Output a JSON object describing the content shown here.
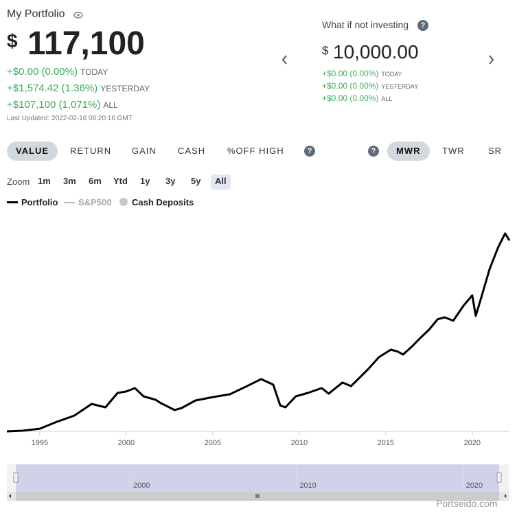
{
  "header": {
    "title": "My Portfolio",
    "currency": "$",
    "value": "117,100",
    "changes": [
      {
        "amount": "+$0.00 (0.00%)",
        "period": "TODAY"
      },
      {
        "amount": "+$1,574.42 (1.36%)",
        "period": "YESTERDAY"
      },
      {
        "amount": "+$107,100 (1,071%)",
        "period": "ALL"
      }
    ],
    "last_updated": "Last Updated: 2022-02-16 08:20:16 GMT"
  },
  "compare": {
    "title": "What if not investing",
    "currency": "$",
    "value": "10,000.00",
    "changes": [
      {
        "amount": "+$0.00 (0.00%)",
        "period": "TODAY"
      },
      {
        "amount": "+$0.00 (0.00%)",
        "period": "YESTERDAY"
      },
      {
        "amount": "+$0.00 (0.00%)",
        "period": "ALL"
      }
    ]
  },
  "tabs": {
    "items": [
      "VALUE",
      "RETURN",
      "GAIN",
      "CASH",
      "%OFF HIGH"
    ],
    "active": 0
  },
  "methods": {
    "items": [
      "MWR",
      "TWR",
      "SR"
    ],
    "active": 0
  },
  "zoom": {
    "label": "Zoom",
    "options": [
      "1m",
      "3m",
      "6m",
      "Ytd",
      "1y",
      "3y",
      "5y",
      "All"
    ],
    "active": 7
  },
  "legend": [
    {
      "name": "Portfolio",
      "color": "#000000"
    },
    {
      "name": "S&P500",
      "color": "#bbbbbb"
    },
    {
      "name": "Cash Deposits",
      "color": "#c8c8c8"
    }
  ],
  "chart_data": {
    "type": "line",
    "x": [
      1993.1,
      1994,
      1995,
      1996,
      1997,
      1998,
      1998.8,
      1999.5,
      2000,
      2000.5,
      2001,
      2001.7,
      2002,
      2002.8,
      2003.2,
      2004,
      2005,
      2006,
      2007,
      2007.8,
      2008.5,
      2008.9,
      2009.2,
      2009.8,
      2010.5,
      2011.3,
      2011.7,
      2012.5,
      2013,
      2014,
      2014.6,
      2015.3,
      2015.7,
      2016,
      2016.5,
      2017,
      2017.5,
      2018,
      2018.4,
      2018.9,
      2019.5,
      2020,
      2020.2,
      2020.5,
      2021,
      2021.5,
      2021.9,
      2022.15
    ],
    "series": [
      {
        "name": "Portfolio",
        "color": "#000000",
        "values": [
          10000,
          10400,
          11500,
          15400,
          18800,
          25300,
          23400,
          31400,
          32200,
          34100,
          29500,
          27600,
          25700,
          21900,
          23000,
          27200,
          29100,
          30700,
          35300,
          39100,
          36000,
          24500,
          23400,
          29500,
          31400,
          34100,
          31000,
          37200,
          35200,
          44800,
          51300,
          55500,
          54400,
          52800,
          57100,
          62000,
          66600,
          72400,
          73500,
          71600,
          80000,
          85700,
          74300,
          83800,
          100300,
          112500,
          120200,
          116300
        ]
      }
    ],
    "xlim": [
      1993.1,
      2022.15
    ],
    "xticks": [
      1995,
      2000,
      2005,
      2010,
      2015,
      2020
    ],
    "ylim": [
      10000,
      131600
    ]
  },
  "navigator": {
    "xlim": [
      1993.07,
      2022.2
    ],
    "xticks": [
      2000,
      2010,
      2020
    ]
  },
  "watermark": "Portseido.com"
}
